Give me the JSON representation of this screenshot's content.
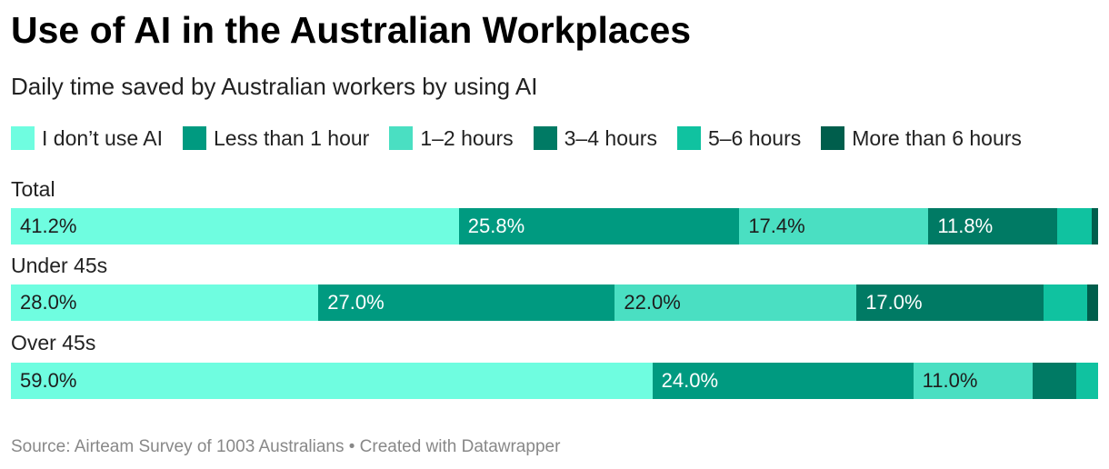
{
  "title": "Use of AI in the Australian Workplaces",
  "subtitle": "Daily time saved by Australian workers by using AI",
  "footer": "Source: Airteam Survey of 1003 Australians • Created with Datawrapper",
  "chart_data": {
    "type": "bar",
    "orientation": "horizontal",
    "stacked": true,
    "normalized": true,
    "title": "Use of AI in the Australian Workplaces",
    "subtitle": "Daily time saved by Australian workers by using AI",
    "legend_position": "top",
    "grid": false,
    "categories": [
      "Total",
      "Under 45s",
      "Over 45s"
    ],
    "series": [
      {
        "name": "I don’t use AI",
        "color": "#6ffde0",
        "label_color": "#1d1d1d",
        "values": [
          41.2,
          28.0,
          59.0
        ],
        "labels": [
          "41.2%",
          "28.0%",
          "59.0%"
        ]
      },
      {
        "name": "Less than 1 hour",
        "color": "#009a80",
        "label_color": "#ffffff",
        "values": [
          25.8,
          27.0,
          24.0
        ],
        "labels": [
          "25.8%",
          "27.0%",
          "24.0%"
        ]
      },
      {
        "name": "1–2 hours",
        "color": "#4adfc2",
        "label_color": "#1d1d1d",
        "values": [
          17.4,
          22.0,
          11.0
        ],
        "labels": [
          "17.4%",
          "22.0%",
          "11.0%"
        ]
      },
      {
        "name": "3–4 hours",
        "color": "#007a64",
        "label_color": "#ffffff",
        "values": [
          11.8,
          17.0,
          4.0
        ],
        "labels": [
          "11.8%",
          "17.0%",
          ""
        ]
      },
      {
        "name": "5–6 hours",
        "color": "#10c2a0",
        "label_color": "#1d1d1d",
        "values": [
          3.2,
          4.0,
          2.0
        ],
        "labels": [
          "",
          "",
          ""
        ]
      },
      {
        "name": "More than 6 hours",
        "color": "#005e4c",
        "label_color": "#ffffff",
        "values": [
          0.6,
          1.0,
          0.0
        ],
        "labels": [
          "",
          "",
          ""
        ]
      }
    ],
    "source": "Source: Airteam Survey of 1003 Australians • Created with Datawrapper"
  }
}
